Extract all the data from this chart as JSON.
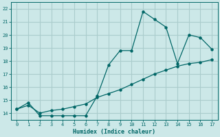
{
  "xlabel": "Humidex (Indice chaleur)",
  "bg_color": "#cce8e8",
  "grid_color": "#aacccc",
  "line_color": "#006666",
  "spine_color": "#006666",
  "xlim": [
    -0.5,
    17.5
  ],
  "ylim": [
    13.5,
    22.5
  ],
  "xticks": [
    0,
    1,
    2,
    3,
    4,
    5,
    6,
    7,
    8,
    9,
    10,
    11,
    12,
    13,
    14,
    15,
    16,
    17
  ],
  "yticks": [
    14,
    15,
    16,
    17,
    18,
    19,
    20,
    21,
    22
  ],
  "line1_x": [
    0,
    1,
    2,
    3,
    4,
    5,
    6,
    7,
    8,
    9,
    10,
    11,
    12,
    13,
    14,
    15,
    16,
    17
  ],
  "line1_y": [
    14.3,
    14.8,
    13.8,
    13.8,
    13.8,
    13.8,
    13.8,
    15.3,
    17.7,
    18.8,
    18.8,
    21.8,
    21.2,
    20.6,
    17.8,
    20.0,
    19.8,
    18.9
  ],
  "line2_x": [
    0,
    1,
    2,
    3,
    4,
    5,
    6,
    7,
    8,
    9,
    10,
    11,
    12,
    13,
    14,
    15,
    16,
    17
  ],
  "line2_y": [
    14.3,
    14.6,
    14.0,
    14.2,
    14.3,
    14.5,
    14.7,
    15.2,
    15.5,
    15.8,
    16.2,
    16.6,
    17.0,
    17.3,
    17.6,
    17.8,
    17.9,
    18.1
  ]
}
